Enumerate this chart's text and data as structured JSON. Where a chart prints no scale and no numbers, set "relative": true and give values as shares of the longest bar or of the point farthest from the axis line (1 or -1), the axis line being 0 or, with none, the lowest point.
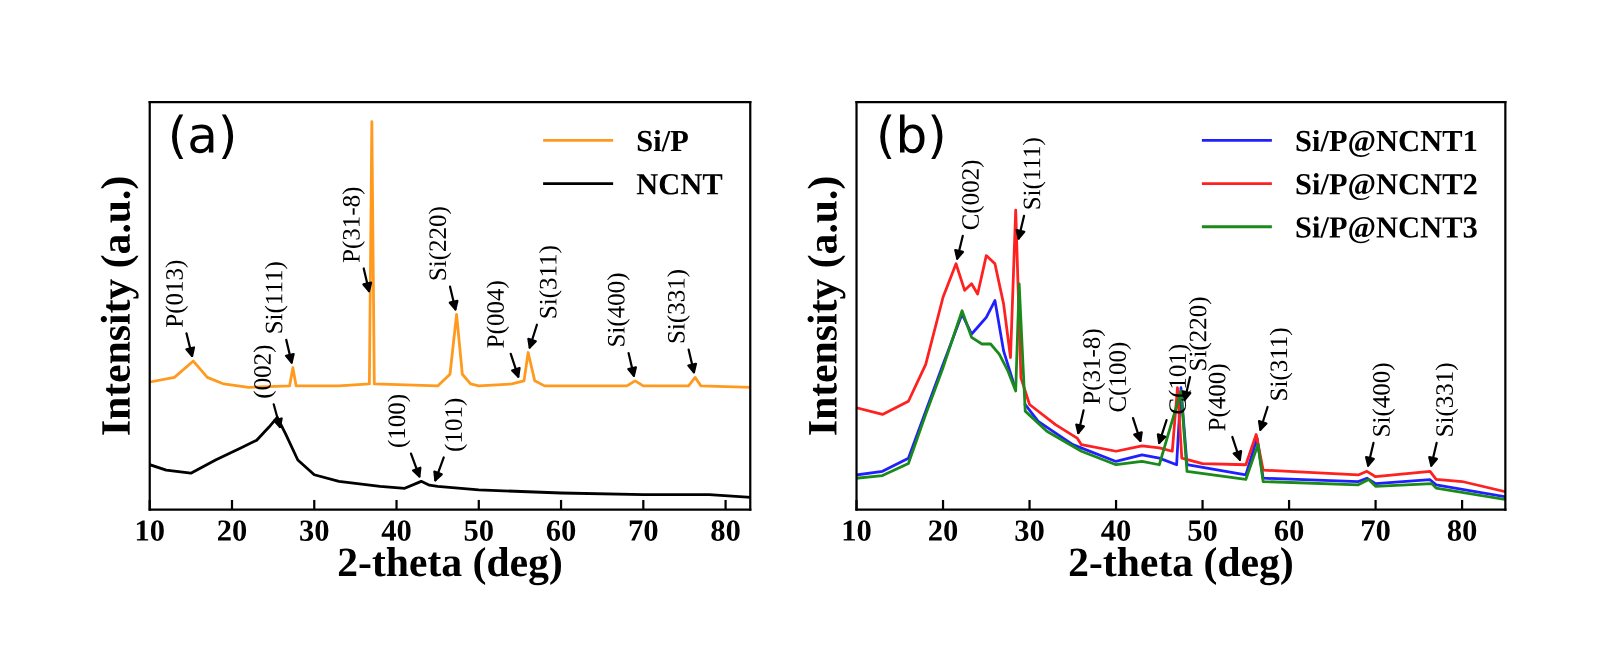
{
  "chart_data": [
    {
      "type": "line",
      "title": "(a)",
      "xlabel": "2-theta (deg)",
      "ylabel": "Intensity (a.u.)",
      "relative": true,
      "xlim": [
        10,
        83
      ],
      "xticks": [
        10,
        20,
        30,
        40,
        50,
        60,
        70,
        80
      ],
      "legend": "top right",
      "grid": false,
      "series": [
        {
          "name": "Si/P",
          "color": "#ff9a1e",
          "x": [
            10,
            13,
            15.3,
            17,
            19,
            22,
            27,
            27.4,
            27.8,
            33,
            36.7,
            37,
            37.3,
            45,
            46.5,
            47.3,
            48,
            49,
            50,
            54,
            55.5,
            56,
            56.8,
            58,
            68,
            69,
            70,
            75.5,
            76.3,
            77,
            83
          ],
          "values": [
            0.329,
            0.341,
            0.383,
            0.341,
            0.324,
            0.315,
            0.319,
            0.366,
            0.319,
            0.319,
            0.324,
            1.0,
            0.324,
            0.319,
            0.349,
            0.503,
            0.349,
            0.324,
            0.319,
            0.324,
            0.332,
            0.405,
            0.332,
            0.319,
            0.319,
            0.332,
            0.319,
            0.319,
            0.341,
            0.319,
            0.315
          ]
        },
        {
          "name": "NCNT",
          "color": "#000000",
          "x": [
            10,
            12,
            15,
            18,
            21,
            23,
            24.5,
            25.5,
            26.5,
            28,
            30,
            33,
            38,
            41,
            43,
            44,
            45,
            50,
            60,
            70,
            78,
            83
          ],
          "values": [
            0.116,
            0.102,
            0.094,
            0.128,
            0.158,
            0.179,
            0.213,
            0.238,
            0.196,
            0.128,
            0.09,
            0.073,
            0.06,
            0.055,
            0.073,
            0.063,
            0.06,
            0.051,
            0.043,
            0.039,
            0.039,
            0.032
          ]
        }
      ],
      "annotations": [
        {
          "text": "P(013)",
          "x": 15.3,
          "y": 0.383
        },
        {
          "text": "Si(111)",
          "x": 27.4,
          "y": 0.366
        },
        {
          "text": "P(31-8)",
          "x": 36.8,
          "y": 0.55
        },
        {
          "text": "Si(220)",
          "x": 47.3,
          "y": 0.503
        },
        {
          "text": "P(004)",
          "x": 55,
          "y": 0.33
        },
        {
          "text": "Si(311)",
          "x": 56,
          "y": 0.405
        },
        {
          "text": "Si(400)",
          "x": 69,
          "y": 0.332
        },
        {
          "text": "Si(331)",
          "x": 76.3,
          "y": 0.341
        },
        {
          "text": "(002)",
          "x": 26,
          "y": 0.2
        },
        {
          "text": "(100)",
          "x": 43,
          "y": 0.073
        },
        {
          "text": "(101)",
          "x": 44.5,
          "y": 0.063
        }
      ]
    },
    {
      "type": "line",
      "title": "(b)",
      "xlabel": "2-theta (deg)",
      "ylabel": "Intensity (a.u.)",
      "relative": true,
      "xlim": [
        10,
        85
      ],
      "xticks": [
        10,
        20,
        30,
        40,
        50,
        60,
        70,
        80
      ],
      "legend": "top right",
      "grid": false,
      "series": [
        {
          "name": "Si/P@NCNT1",
          "color": "#2020ff",
          "x": [
            10,
            13,
            16,
            18,
            20,
            22.2,
            23.3,
            24,
            25,
            26,
            27,
            28.2,
            28.8,
            29.5,
            31,
            35,
            40,
            43,
            45,
            47,
            47.5,
            48.2,
            55,
            56.3,
            57,
            68,
            69,
            70,
            76.3,
            77,
            85
          ],
          "values": [
            0.116,
            0.128,
            0.172,
            0.329,
            0.485,
            0.653,
            0.586,
            0.609,
            0.642,
            0.698,
            0.53,
            0.418,
            null,
            0.351,
            0.295,
            0.217,
            0.161,
            0.183,
            0.172,
            0.15,
            0.407,
            0.15,
            0.116,
            0.239,
            0.105,
            0.094,
            0.105,
            0.087,
            0.1,
            0.083,
            0.043
          ]
        },
        {
          "name": "Si/P@NCNT2",
          "color": "#ff2020",
          "x": [
            10,
            13,
            16,
            18,
            20,
            21.5,
            22.5,
            23.3,
            24,
            25,
            26,
            27,
            27.8,
            28.4,
            29,
            30,
            33,
            35.5,
            36,
            40,
            43,
            45,
            46.5,
            47.1,
            47.6,
            50,
            55,
            56.2,
            57,
            60,
            68,
            69,
            70,
            76.3,
            77,
            80,
            85
          ],
          "values": [
            0.34,
            0.318,
            0.362,
            0.485,
            0.709,
            0.821,
            0.732,
            0.754,
            0.72,
            0.848,
            0.821,
            0.687,
            0.508,
            1.0,
            0.441,
            0.351,
            0.284,
            0.239,
            0.217,
            0.195,
            0.213,
            0.206,
            0.195,
            0.407,
            0.172,
            0.154,
            0.15,
            0.251,
            0.132,
            0.128,
            0.116,
            0.128,
            0.11,
            0.128,
            0.101,
            0.094,
            0.06
          ]
        },
        {
          "name": "Si/P@NCNT3",
          "color": "#1a8a1a",
          "x": [
            10,
            13,
            16,
            18,
            20,
            22.2,
            23.3,
            24.5,
            25.5,
            26.5,
            27.5,
            28.4,
            28.8,
            29.5,
            32,
            36,
            40,
            43,
            45,
            47.5,
            48.2,
            55,
            56.4,
            57,
            68,
            69.2,
            70,
            76.5,
            77,
            85
          ],
          "values": [
            0.105,
            0.114,
            0.154,
            0.318,
            0.474,
            0.664,
            0.575,
            0.553,
            0.553,
            0.519,
            0.463,
            0.396,
            0.754,
            0.329,
            0.262,
            0.195,
            0.15,
            0.161,
            0.15,
            0.396,
            0.128,
            0.101,
            0.217,
            0.094,
            0.083,
            0.101,
            0.078,
            0.087,
            0.072,
            0.034
          ]
        }
      ],
      "annotations": [
        {
          "text": "C(002)",
          "x": 21.5,
          "y": 0.821
        },
        {
          "text": "Si(111)",
          "x": 28.6,
          "y": 0.888
        },
        {
          "text": "P(31-8)",
          "x": 35.5,
          "y": 0.239
        },
        {
          "text": "C(100)",
          "x": 43,
          "y": 0.213
        },
        {
          "text": "C(101)",
          "x": 44.8,
          "y": 0.206
        },
        {
          "text": "Si(220)",
          "x": 47.8,
          "y": 0.35
        },
        {
          "text": "P(400)",
          "x": 54.5,
          "y": 0.15
        },
        {
          "text": "Si(311)",
          "x": 56.5,
          "y": 0.25
        },
        {
          "text": "Si(400)",
          "x": 69,
          "y": 0.13
        },
        {
          "text": "Si(331)",
          "x": 76.3,
          "y": 0.13
        }
      ]
    }
  ]
}
